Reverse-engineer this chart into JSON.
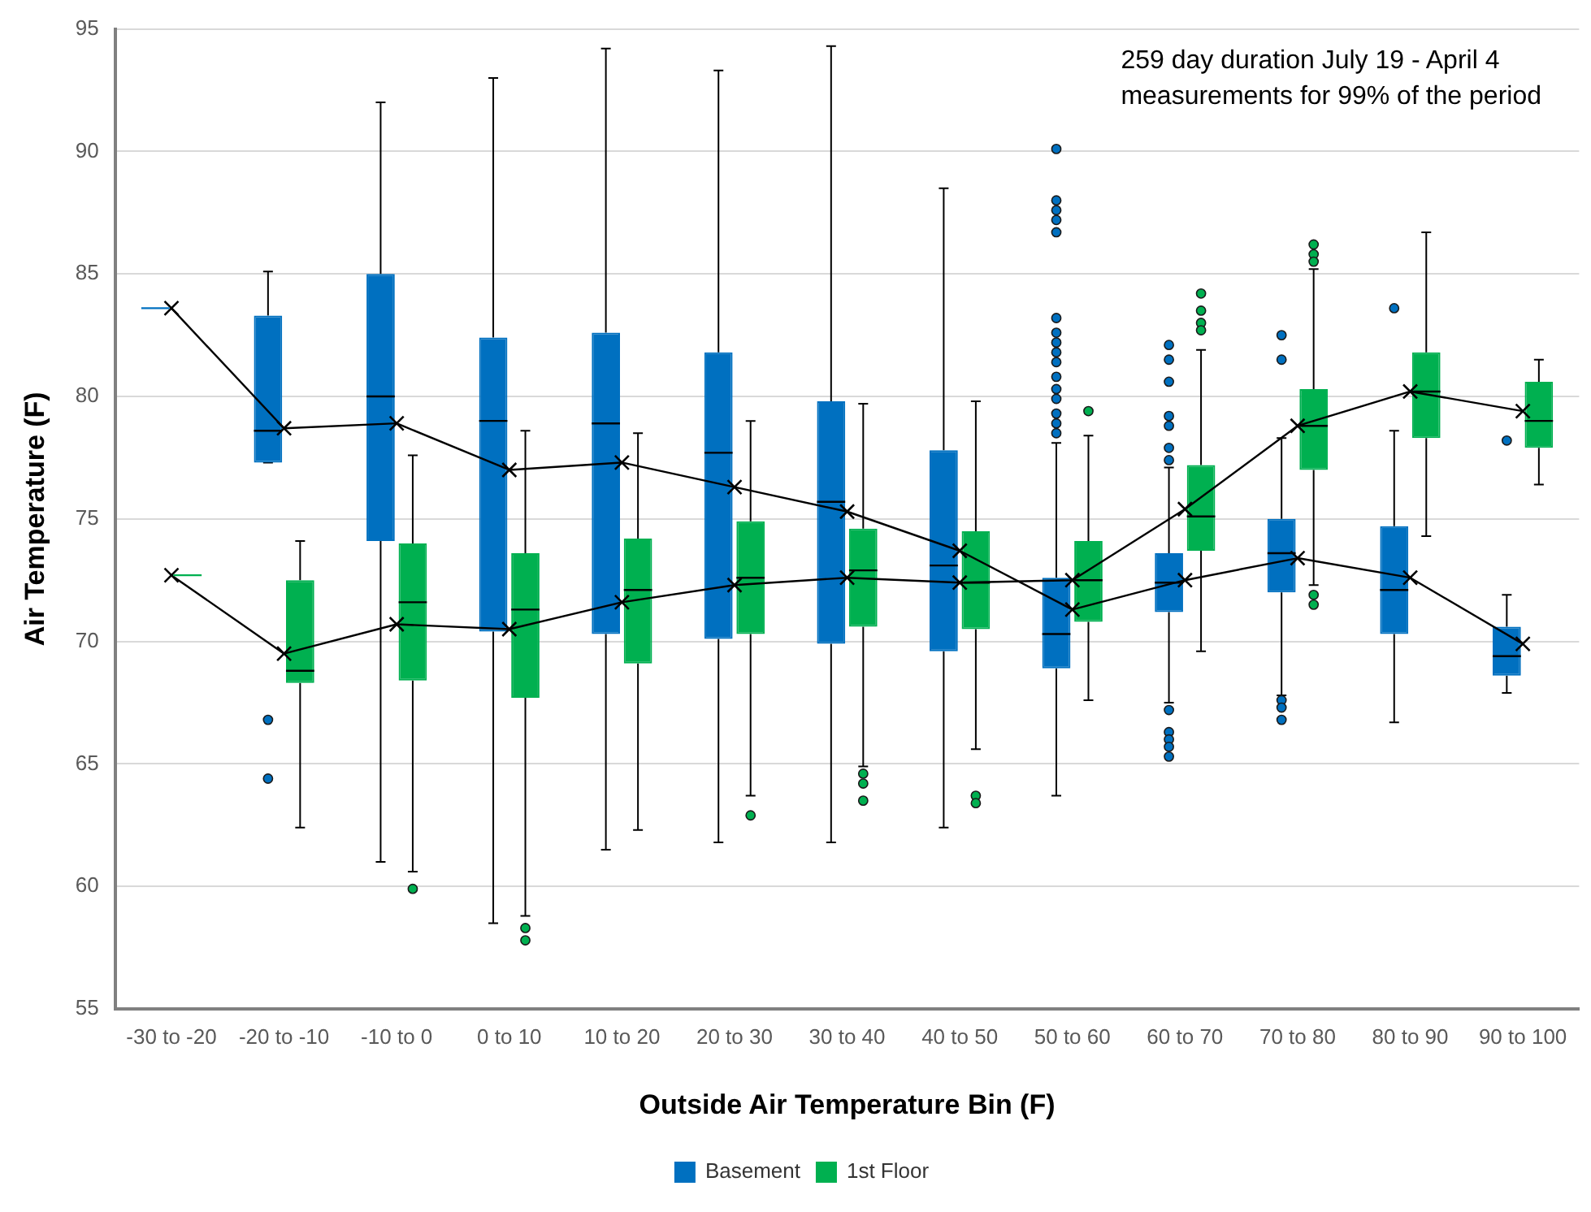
{
  "chart_data": {
    "type": "box",
    "xlabel": "Outside Air Temperature Bin (F)",
    "ylabel": "Air Temperature (F)",
    "categories": [
      "-30 to -20",
      "-20 to -10",
      "-10 to 0",
      "0 to 10",
      "10 to 20",
      "20 to 30",
      "30 to 40",
      "40 to 50",
      "50 to 60",
      "60 to 70",
      "70 to 80",
      "80 to 90",
      "90 to 100"
    ],
    "ylim": [
      55,
      95
    ],
    "yticks": [
      55,
      60,
      65,
      70,
      75,
      80,
      85,
      90,
      95
    ],
    "grid": "y",
    "legend": "bottom",
    "marker": "cross",
    "line_style": "solid",
    "annotations": [
      "259 day duration July 19 - April 4",
      "measurements for 99% of the period"
    ],
    "series": [
      {
        "name": "Basement",
        "color": "#0070c0",
        "boxes": [
          {
            "low": 83.6,
            "q1": 83.6,
            "median": 83.6,
            "q3": 83.6,
            "high": 83.6
          },
          {
            "low": 77.3,
            "q1": 77.3,
            "median": 78.6,
            "q3": 83.3,
            "high": 85.1,
            "outliers": [
              66.8,
              64.4
            ]
          },
          {
            "low": 61.0,
            "q1": 74.1,
            "median": 80.0,
            "q3": 85.0,
            "high": 92.0
          },
          {
            "low": 58.5,
            "q1": 70.4,
            "median": 79.0,
            "q3": 82.4,
            "high": 93.0
          },
          {
            "low": 61.5,
            "q1": 70.3,
            "median": 78.9,
            "q3": 82.6,
            "high": 94.2
          },
          {
            "low": 61.8,
            "q1": 70.1,
            "median": 77.7,
            "q3": 81.8,
            "high": 93.3
          },
          {
            "low": 61.8,
            "q1": 69.9,
            "median": 75.7,
            "q3": 79.8,
            "high": 94.3
          },
          {
            "low": 62.4,
            "q1": 69.6,
            "median": 73.1,
            "q3": 77.8,
            "high": 88.5
          },
          {
            "low": 63.7,
            "q1": 68.9,
            "median": 70.3,
            "q3": 72.6,
            "high": 78.1,
            "outliers": [
              90.1,
              88.0,
              87.6,
              87.2,
              86.7,
              83.2,
              82.6,
              82.2,
              81.8,
              81.4,
              80.8,
              80.3,
              79.9,
              79.3,
              78.9,
              78.5
            ]
          },
          {
            "low": 67.5,
            "q1": 71.2,
            "median": 72.4,
            "q3": 73.6,
            "high": 77.1,
            "outliers": [
              82.1,
              81.5,
              80.6,
              79.2,
              78.8,
              77.9,
              77.4,
              67.2,
              66.3,
              66.0,
              65.7,
              65.3
            ]
          },
          {
            "low": 67.8,
            "q1": 72.0,
            "median": 73.6,
            "q3": 75.0,
            "high": 78.3,
            "outliers": [
              82.5,
              81.5,
              67.6,
              67.3,
              66.8
            ]
          },
          {
            "low": 66.7,
            "q1": 70.3,
            "median": 72.1,
            "q3": 74.7,
            "high": 78.6,
            "outliers": [
              83.6
            ]
          },
          {
            "low": 67.9,
            "q1": 68.6,
            "median": 69.4,
            "q3": 70.6,
            "high": 71.9,
            "outliers": [
              78.2
            ]
          }
        ]
      },
      {
        "name": "1st Floor",
        "color": "#00b050",
        "boxes": [
          {
            "low": 72.7,
            "q1": 72.7,
            "median": 72.7,
            "q3": 72.7,
            "high": 72.7
          },
          {
            "low": 62.4,
            "q1": 68.3,
            "median": 68.8,
            "q3": 72.5,
            "high": 74.1
          },
          {
            "low": 60.6,
            "q1": 68.4,
            "median": 71.6,
            "q3": 74.0,
            "high": 77.6,
            "outliers": [
              59.9
            ]
          },
          {
            "low": 58.8,
            "q1": 67.7,
            "median": 71.3,
            "q3": 73.6,
            "high": 78.6,
            "outliers": [
              58.3,
              57.8
            ]
          },
          {
            "low": 62.3,
            "q1": 69.1,
            "median": 72.1,
            "q3": 74.2,
            "high": 78.5
          },
          {
            "low": 63.7,
            "q1": 70.3,
            "median": 72.6,
            "q3": 74.9,
            "high": 79.0,
            "outliers": [
              62.9
            ]
          },
          {
            "low": 64.9,
            "q1": 70.6,
            "median": 72.9,
            "q3": 74.6,
            "high": 79.7,
            "outliers": [
              64.6,
              64.2,
              63.5
            ]
          },
          {
            "low": 65.6,
            "q1": 70.5,
            "median": 72.4,
            "q3": 74.5,
            "high": 79.8,
            "outliers": [
              63.7,
              63.4
            ]
          },
          {
            "low": 67.6,
            "q1": 70.8,
            "median": 72.5,
            "q3": 74.1,
            "high": 78.4,
            "outliers": [
              79.4
            ]
          },
          {
            "low": 69.6,
            "q1": 73.7,
            "median": 75.1,
            "q3": 77.2,
            "high": 81.9,
            "outliers": [
              84.2,
              83.5,
              83.0,
              82.7
            ]
          },
          {
            "low": 72.3,
            "q1": 77.0,
            "median": 78.8,
            "q3": 80.3,
            "high": 85.2,
            "outliers": [
              86.2,
              85.8,
              85.5,
              71.9,
              71.5
            ]
          },
          {
            "low": 74.3,
            "q1": 78.3,
            "median": 80.2,
            "q3": 81.8,
            "high": 86.7
          },
          {
            "low": 76.4,
            "q1": 77.9,
            "median": 79.0,
            "q3": 80.6,
            "high": 81.5
          }
        ]
      },
      {
        "type": "line",
        "color": "#000000",
        "values": [
          83.6,
          78.7,
          78.9,
          77.0,
          77.3,
          76.3,
          75.3,
          73.7,
          71.3,
          72.5,
          73.4,
          72.6,
          69.9
        ]
      },
      {
        "type": "line",
        "color": "#000000",
        "values": [
          72.7,
          69.5,
          70.7,
          70.5,
          71.6,
          72.3,
          72.6,
          72.4,
          72.5,
          75.4,
          78.8,
          80.2,
          79.4
        ]
      }
    ]
  }
}
